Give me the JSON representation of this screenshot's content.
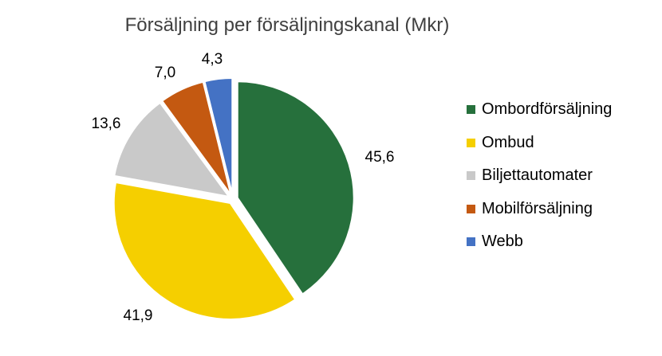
{
  "chart_data": {
    "type": "pie",
    "title": "Försäljning per försäljningskanal (Mkr)",
    "categories": [
      "Ombordförsäljning",
      "Ombud",
      "Biljettautomater",
      "Mobilförsäljning",
      "Webb"
    ],
    "values": [
      45.6,
      41.9,
      13.6,
      7.0,
      4.3
    ],
    "data_labels": [
      "45,6",
      "41,9",
      "13,6",
      "7,0",
      "4,3"
    ],
    "colors": [
      "#26703C",
      "#F5CF00",
      "#C9C9C9",
      "#C45911",
      "#4472C4"
    ],
    "exploded": true,
    "legend": "right"
  }
}
